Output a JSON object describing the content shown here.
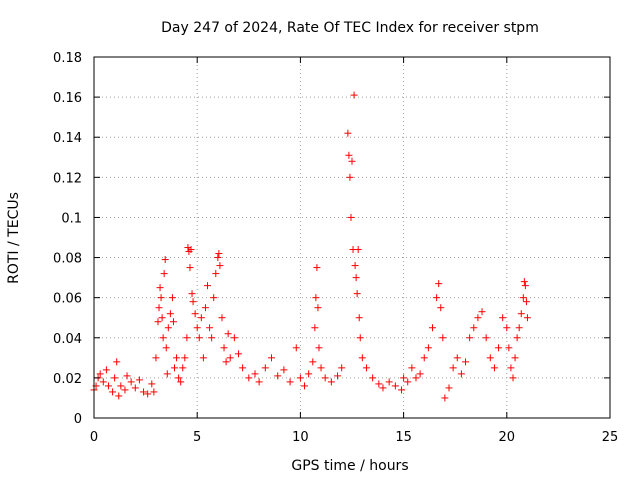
{
  "chart_data": {
    "type": "scatter",
    "title": "Day 247 of 2024, Rate Of TEC Index for receiver stpm",
    "xlabel": "GPS time / hours",
    "ylabel": "ROTI / TECUs",
    "xlim": [
      0,
      25
    ],
    "ylim": [
      0,
      0.18
    ],
    "xticks": [
      0,
      5,
      10,
      15,
      20,
      25
    ],
    "yticks": [
      0,
      0.02,
      0.04,
      0.06,
      0.08,
      0.1,
      0.12,
      0.14,
      0.16,
      0.18
    ],
    "grid": true,
    "marker": "+",
    "color": "#ff0000",
    "series": [
      {
        "points": [
          [
            0.0,
            0.014
          ],
          [
            0.1,
            0.016
          ],
          [
            0.2,
            0.02
          ],
          [
            0.3,
            0.022
          ],
          [
            0.45,
            0.018
          ],
          [
            0.6,
            0.024
          ],
          [
            0.7,
            0.016
          ],
          [
            0.9,
            0.013
          ],
          [
            1.0,
            0.02
          ],
          [
            1.1,
            0.028
          ],
          [
            1.2,
            0.011
          ],
          [
            1.3,
            0.016
          ],
          [
            1.5,
            0.014
          ],
          [
            1.6,
            0.021
          ],
          [
            1.8,
            0.018
          ],
          [
            2.0,
            0.015
          ],
          [
            2.2,
            0.019
          ],
          [
            2.4,
            0.013
          ],
          [
            2.6,
            0.012
          ],
          [
            2.8,
            0.017
          ],
          [
            2.9,
            0.013
          ],
          [
            3.0,
            0.03
          ],
          [
            3.1,
            0.048
          ],
          [
            3.15,
            0.055
          ],
          [
            3.2,
            0.065
          ],
          [
            3.25,
            0.06
          ],
          [
            3.3,
            0.05
          ],
          [
            3.35,
            0.04
          ],
          [
            3.4,
            0.072
          ],
          [
            3.45,
            0.079
          ],
          [
            3.5,
            0.035
          ],
          [
            3.55,
            0.022
          ],
          [
            3.6,
            0.045
          ],
          [
            3.7,
            0.052
          ],
          [
            3.8,
            0.06
          ],
          [
            3.85,
            0.048
          ],
          [
            3.9,
            0.025
          ],
          [
            4.0,
            0.03
          ],
          [
            4.1,
            0.02
          ],
          [
            4.2,
            0.018
          ],
          [
            4.3,
            0.025
          ],
          [
            4.4,
            0.03
          ],
          [
            4.5,
            0.04
          ],
          [
            4.55,
            0.085
          ],
          [
            4.6,
            0.083
          ],
          [
            4.65,
            0.075
          ],
          [
            4.7,
            0.084
          ],
          [
            4.75,
            0.062
          ],
          [
            4.8,
            0.058
          ],
          [
            4.9,
            0.052
          ],
          [
            5.0,
            0.045
          ],
          [
            5.1,
            0.04
          ],
          [
            5.2,
            0.05
          ],
          [
            5.3,
            0.03
          ],
          [
            5.4,
            0.055
          ],
          [
            5.5,
            0.066
          ],
          [
            5.6,
            0.045
          ],
          [
            5.7,
            0.04
          ],
          [
            5.8,
            0.06
          ],
          [
            5.9,
            0.072
          ],
          [
            6.0,
            0.08
          ],
          [
            6.05,
            0.082
          ],
          [
            6.1,
            0.076
          ],
          [
            6.2,
            0.05
          ],
          [
            6.3,
            0.035
          ],
          [
            6.4,
            0.028
          ],
          [
            6.5,
            0.042
          ],
          [
            6.6,
            0.03
          ],
          [
            6.8,
            0.04
          ],
          [
            7.0,
            0.032
          ],
          [
            7.2,
            0.025
          ],
          [
            7.5,
            0.02
          ],
          [
            7.8,
            0.022
          ],
          [
            8.0,
            0.018
          ],
          [
            8.3,
            0.025
          ],
          [
            8.6,
            0.03
          ],
          [
            8.9,
            0.021
          ],
          [
            9.2,
            0.024
          ],
          [
            9.5,
            0.018
          ],
          [
            9.8,
            0.035
          ],
          [
            10.0,
            0.02
          ],
          [
            10.2,
            0.016
          ],
          [
            10.4,
            0.022
          ],
          [
            10.6,
            0.028
          ],
          [
            10.7,
            0.045
          ],
          [
            10.75,
            0.06
          ],
          [
            10.8,
            0.075
          ],
          [
            10.85,
            0.055
          ],
          [
            10.9,
            0.035
          ],
          [
            11.0,
            0.025
          ],
          [
            11.2,
            0.02
          ],
          [
            11.5,
            0.018
          ],
          [
            11.8,
            0.021
          ],
          [
            12.0,
            0.025
          ],
          [
            12.3,
            0.142
          ],
          [
            12.35,
            0.131
          ],
          [
            12.4,
            0.12
          ],
          [
            12.45,
            0.1
          ],
          [
            12.5,
            0.128
          ],
          [
            12.55,
            0.084
          ],
          [
            12.6,
            0.161
          ],
          [
            12.65,
            0.076
          ],
          [
            12.7,
            0.07
          ],
          [
            12.75,
            0.062
          ],
          [
            12.8,
            0.084
          ],
          [
            12.85,
            0.05
          ],
          [
            12.9,
            0.04
          ],
          [
            13.0,
            0.03
          ],
          [
            13.2,
            0.025
          ],
          [
            13.5,
            0.02
          ],
          [
            13.8,
            0.017
          ],
          [
            14.0,
            0.015
          ],
          [
            14.3,
            0.018
          ],
          [
            14.6,
            0.016
          ],
          [
            14.9,
            0.014
          ],
          [
            15.0,
            0.02
          ],
          [
            15.2,
            0.018
          ],
          [
            15.4,
            0.025
          ],
          [
            15.6,
            0.02
          ],
          [
            15.8,
            0.022
          ],
          [
            16.0,
            0.03
          ],
          [
            16.2,
            0.035
          ],
          [
            16.4,
            0.045
          ],
          [
            16.6,
            0.06
          ],
          [
            16.7,
            0.067
          ],
          [
            16.8,
            0.055
          ],
          [
            16.9,
            0.04
          ],
          [
            17.0,
            0.01
          ],
          [
            17.2,
            0.015
          ],
          [
            17.4,
            0.025
          ],
          [
            17.6,
            0.03
          ],
          [
            17.8,
            0.022
          ],
          [
            18.0,
            0.028
          ],
          [
            18.2,
            0.04
          ],
          [
            18.4,
            0.045
          ],
          [
            18.6,
            0.05
          ],
          [
            18.8,
            0.053
          ],
          [
            19.0,
            0.04
          ],
          [
            19.2,
            0.03
          ],
          [
            19.4,
            0.025
          ],
          [
            19.6,
            0.035
          ],
          [
            19.8,
            0.05
          ],
          [
            20.0,
            0.045
          ],
          [
            20.1,
            0.035
          ],
          [
            20.2,
            0.025
          ],
          [
            20.3,
            0.02
          ],
          [
            20.4,
            0.03
          ],
          [
            20.5,
            0.04
          ],
          [
            20.6,
            0.045
          ],
          [
            20.7,
            0.052
          ],
          [
            20.8,
            0.06
          ],
          [
            20.85,
            0.068
          ],
          [
            20.9,
            0.066
          ],
          [
            20.95,
            0.058
          ],
          [
            21.0,
            0.05
          ]
        ]
      }
    ]
  }
}
